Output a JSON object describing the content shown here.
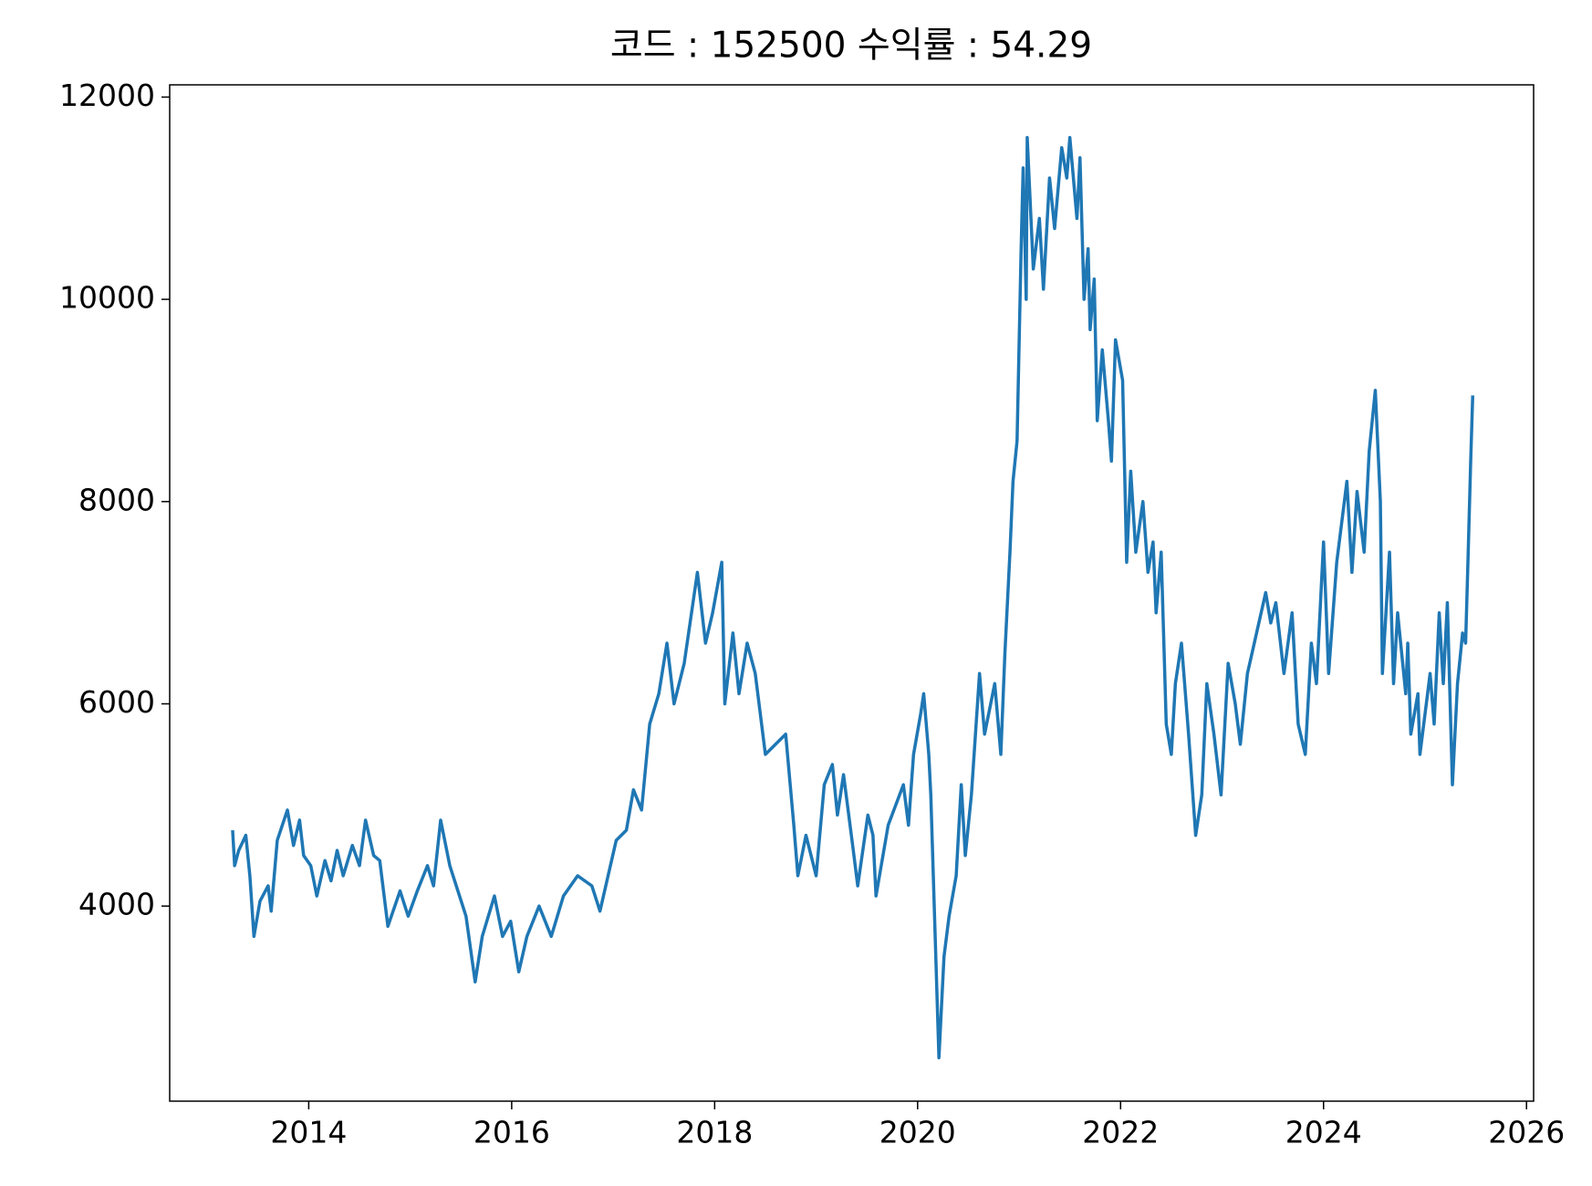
{
  "chart_data": {
    "type": "line",
    "title": "코드 : 152500 수익률 : 54.29",
    "x": [
      2013.25,
      2013.27,
      2013.31,
      2013.38,
      2013.42,
      2013.46,
      2013.52,
      2013.6,
      2013.63,
      2013.69,
      2013.79,
      2013.85,
      2013.91,
      2013.95,
      2014.02,
      2014.08,
      2014.16,
      2014.22,
      2014.28,
      2014.34,
      2014.43,
      2014.5,
      2014.56,
      2014.64,
      2014.7,
      2014.78,
      2014.9,
      2014.98,
      2015.07,
      2015.17,
      2015.23,
      2015.3,
      2015.39,
      2015.47,
      2015.55,
      2015.64,
      2015.71,
      2015.83,
      2015.91,
      2015.99,
      2016.07,
      2016.15,
      2016.27,
      2016.39,
      2016.51,
      2016.65,
      2016.79,
      2016.87,
      2016.95,
      2017.03,
      2017.13,
      2017.2,
      2017.28,
      2017.36,
      2017.45,
      2017.53,
      2017.6,
      2017.7,
      2017.83,
      2017.91,
      2017.98,
      2018.07,
      2018.1,
      2018.18,
      2018.24,
      2018.32,
      2018.4,
      2018.5,
      2018.7,
      2018.78,
      2018.82,
      2018.9,
      2019.0,
      2019.08,
      2019.16,
      2019.21,
      2019.27,
      2019.36,
      2019.41,
      2019.51,
      2019.56,
      2019.59,
      2019.71,
      2019.86,
      2019.91,
      2019.96,
      2020.03,
      2020.06,
      2020.11,
      2020.13,
      2020.21,
      2020.26,
      2020.31,
      2020.38,
      2020.43,
      2020.47,
      2020.53,
      2020.61,
      2020.66,
      2020.76,
      2020.82,
      2020.86,
      2020.91,
      2020.94,
      2020.98,
      2021.02,
      2021.04,
      2021.07,
      2021.08,
      2021.14,
      2021.2,
      2021.24,
      2021.3,
      2021.35,
      2021.42,
      2021.47,
      2021.5,
      2021.57,
      2021.6,
      2021.64,
      2021.68,
      2021.7,
      2021.74,
      2021.77,
      2021.82,
      2021.88,
      2021.91,
      2021.95,
      2022.02,
      2022.06,
      2022.1,
      2022.15,
      2022.22,
      2022.27,
      2022.32,
      2022.35,
      2022.4,
      2022.45,
      2022.5,
      2022.54,
      2022.6,
      2022.67,
      2022.74,
      2022.8,
      2022.85,
      2022.92,
      2022.99,
      2023.06,
      2023.13,
      2023.18,
      2023.25,
      2023.43,
      2023.48,
      2023.53,
      2023.61,
      2023.69,
      2023.75,
      2023.82,
      2023.88,
      2023.93,
      2024.0,
      2024.05,
      2024.13,
      2024.23,
      2024.28,
      2024.33,
      2024.4,
      2024.45,
      2024.51,
      2024.56,
      2024.58,
      2024.65,
      2024.69,
      2024.73,
      2024.81,
      2024.83,
      2024.86,
      2024.93,
      2024.95,
      2025.05,
      2025.09,
      2025.14,
      2025.18,
      2025.22,
      2025.27,
      2025.32,
      2025.37,
      2025.4,
      2025.42,
      2025.45,
      2025.47
    ],
    "series": [
      {
        "color": "#1f77b4",
        "values": [
          4750,
          4400,
          4550,
          4700,
          4300,
          3700,
          4050,
          4200,
          3950,
          4650,
          4950,
          4600,
          4850,
          4500,
          4400,
          4100,
          4450,
          4250,
          4550,
          4300,
          4600,
          4400,
          4850,
          4500,
          4450,
          3800,
          4150,
          3900,
          4150,
          4400,
          4200,
          4850,
          4400,
          4150,
          3900,
          3250,
          3700,
          4100,
          3700,
          3850,
          3350,
          3700,
          4000,
          3700,
          4100,
          4300,
          4200,
          3950,
          4300,
          4650,
          4750,
          5150,
          4950,
          5800,
          6100,
          6600,
          6000,
          6400,
          7300,
          6600,
          6900,
          7400,
          6000,
          6700,
          6100,
          6600,
          6300,
          5500,
          5700,
          4800,
          4300,
          4700,
          4300,
          5200,
          5400,
          4900,
          5300,
          4600,
          4200,
          4900,
          4700,
          4100,
          4800,
          5200,
          4800,
          5500,
          5900,
          6100,
          5500,
          5100,
          2500,
          3500,
          3900,
          4300,
          5200,
          4500,
          5100,
          6300,
          5700,
          6200,
          5500,
          6500,
          7500,
          8200,
          8600,
          10500,
          11300,
          10000,
          11600,
          10300,
          10800,
          10100,
          11200,
          10700,
          11500,
          11200,
          11600,
          10800,
          11400,
          10000,
          10500,
          9700,
          10200,
          8800,
          9500,
          8800,
          8400,
          9600,
          9200,
          7400,
          8300,
          7500,
          8000,
          7300,
          7600,
          6900,
          7500,
          5800,
          5500,
          6200,
          6600,
          5700,
          4700,
          5100,
          6200,
          5700,
          5100,
          6400,
          6000,
          5600,
          6300,
          7100,
          6800,
          7000,
          6300,
          6900,
          5800,
          5500,
          6600,
          6200,
          7600,
          6300,
          7400,
          8200,
          7300,
          8100,
          7500,
          8500,
          9100,
          8000,
          6300,
          7500,
          6200,
          6900,
          6100,
          6600,
          5700,
          6100,
          5500,
          6300,
          5800,
          6900,
          6200,
          7000,
          5200,
          6200,
          6700,
          6600,
          7300,
          8400,
          9050
        ]
      }
    ],
    "xlim": [
      2012.63,
      2026.07
    ],
    "xticks": [
      2014,
      2016,
      2018,
      2020,
      2022,
      2024,
      2026
    ],
    "ylim": [
      2071,
      12121
    ],
    "yticks": [
      4000,
      6000,
      8000,
      10000,
      12000
    ],
    "grid": false
  }
}
